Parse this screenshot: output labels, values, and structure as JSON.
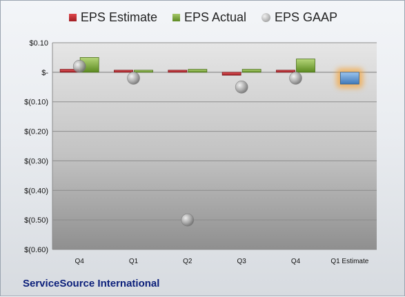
{
  "legend": {
    "estimate_label": "EPS Estimate",
    "actual_label": "EPS Actual",
    "gaap_label": "EPS GAAP"
  },
  "company": "ServiceSource International",
  "colors": {
    "estimate": "#c0272d",
    "actual": "#7aa33a",
    "gaap": "#a6a6a6",
    "forecast": "#5b9bd5",
    "forecast_glow": "#f5a742"
  },
  "chart_data": {
    "type": "bar",
    "title": "",
    "xlabel": "",
    "ylabel": "",
    "ylim": [
      -0.6,
      0.1
    ],
    "yticks": [
      0.1,
      0,
      -0.1,
      -0.2,
      -0.3,
      -0.4,
      -0.5,
      -0.6
    ],
    "ytick_labels": [
      "$0.10",
      "$-",
      "$(0.10)",
      "$(0.20)",
      "$(0.30)",
      "$(0.40)",
      "$(0.50)",
      "$(0.60)"
    ],
    "grid": true,
    "legend_position": "top",
    "categories": [
      "Q4",
      "Q1",
      "Q2",
      "Q3",
      "Q4",
      "Q1 Estimate"
    ],
    "series": [
      {
        "name": "EPS Estimate",
        "values": [
          0.01,
          0.0,
          0.005,
          -0.01,
          0.005,
          null
        ]
      },
      {
        "name": "EPS Actual",
        "values": [
          0.05,
          0.005,
          0.01,
          0.01,
          0.045,
          null
        ]
      },
      {
        "name": "EPS GAAP",
        "values": [
          0.02,
          -0.02,
          -0.5,
          -0.05,
          -0.02,
          null
        ]
      },
      {
        "name": "Q1 Estimate",
        "values": [
          null,
          null,
          null,
          null,
          null,
          -0.04
        ]
      }
    ]
  }
}
